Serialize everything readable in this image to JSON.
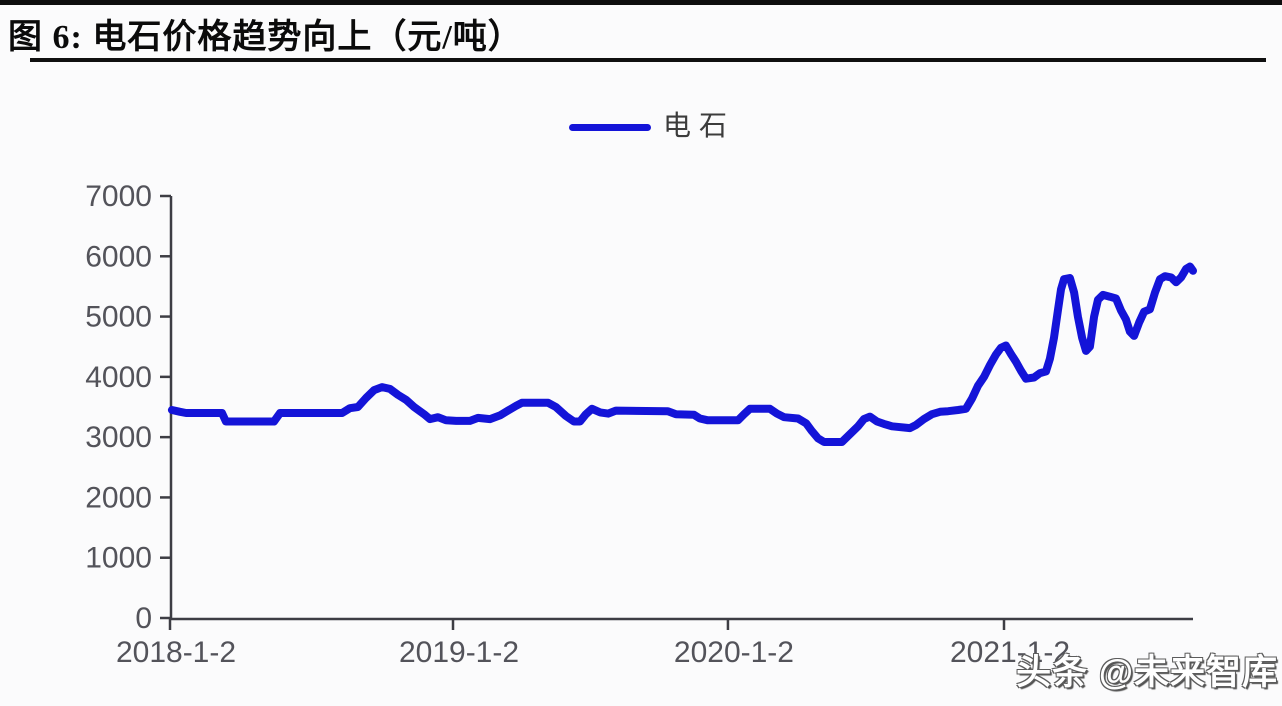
{
  "header": {
    "title": "图 6:  电石价格趋势向上（元/吨）"
  },
  "watermark": {
    "text": "头条 @未来智库"
  },
  "colors": {
    "line_blue": "#1414d8",
    "axis": "#3d3d44",
    "tick_text": "#53535a",
    "title_text": "#0b0b0b",
    "rule_black": "#101010"
  },
  "chart_data": {
    "type": "line",
    "title": "电石价格趋势向上（元/吨）",
    "ylabel": "",
    "xlabel": "",
    "ylim": [
      0,
      7000
    ],
    "grid": false,
    "legend_position": "top-center",
    "legend": [
      {
        "label": "电石",
        "color": "#1414d8"
      }
    ],
    "y_axis": {
      "ticks": [
        0,
        1000,
        2000,
        3000,
        4000,
        5000,
        6000,
        7000
      ]
    },
    "x_axis": {
      "unit": "years since 2018-1-2",
      "ticks": [
        {
          "t": 0.0,
          "label": "2018-1-2"
        },
        {
          "t": 1.018,
          "label": "2019-1-2"
        },
        {
          "t": 2.007,
          "label": "2020-1-2"
        },
        {
          "t": 3.0,
          "label": "2021-1-2"
        }
      ]
    },
    "series": [
      {
        "name": "电石",
        "color": "#1414d8",
        "points": [
          [
            0.007,
            3450
          ],
          [
            0.036,
            3420
          ],
          [
            0.058,
            3400
          ],
          [
            0.187,
            3400
          ],
          [
            0.201,
            3260
          ],
          [
            0.374,
            3260
          ],
          [
            0.396,
            3400
          ],
          [
            0.619,
            3400
          ],
          [
            0.647,
            3480
          ],
          [
            0.676,
            3500
          ],
          [
            0.705,
            3650
          ],
          [
            0.734,
            3780
          ],
          [
            0.763,
            3830
          ],
          [
            0.791,
            3800
          ],
          [
            0.82,
            3700
          ],
          [
            0.849,
            3620
          ],
          [
            0.878,
            3500
          ],
          [
            0.914,
            3380
          ],
          [
            0.935,
            3300
          ],
          [
            0.964,
            3330
          ],
          [
            0.993,
            3280
          ],
          [
            1.029,
            3270
          ],
          [
            1.079,
            3270
          ],
          [
            1.108,
            3320
          ],
          [
            1.151,
            3300
          ],
          [
            1.187,
            3360
          ],
          [
            1.216,
            3440
          ],
          [
            1.245,
            3520
          ],
          [
            1.266,
            3570
          ],
          [
            1.36,
            3570
          ],
          [
            1.388,
            3500
          ],
          [
            1.424,
            3350
          ],
          [
            1.453,
            3260
          ],
          [
            1.475,
            3260
          ],
          [
            1.496,
            3380
          ],
          [
            1.518,
            3470
          ],
          [
            1.547,
            3410
          ],
          [
            1.576,
            3390
          ],
          [
            1.604,
            3440
          ],
          [
            1.791,
            3430
          ],
          [
            1.82,
            3380
          ],
          [
            1.885,
            3370
          ],
          [
            1.906,
            3310
          ],
          [
            1.935,
            3280
          ],
          [
            2.043,
            3280
          ],
          [
            2.065,
            3380
          ],
          [
            2.086,
            3470
          ],
          [
            2.158,
            3470
          ],
          [
            2.183,
            3390
          ],
          [
            2.209,
            3330
          ],
          [
            2.259,
            3310
          ],
          [
            2.288,
            3230
          ],
          [
            2.309,
            3100
          ],
          [
            2.331,
            2980
          ],
          [
            2.353,
            2920
          ],
          [
            2.417,
            2920
          ],
          [
            2.446,
            3050
          ],
          [
            2.475,
            3180
          ],
          [
            2.496,
            3300
          ],
          [
            2.518,
            3340
          ],
          [
            2.543,
            3260
          ],
          [
            2.568,
            3220
          ],
          [
            2.597,
            3180
          ],
          [
            2.662,
            3150
          ],
          [
            2.683,
            3200
          ],
          [
            2.712,
            3300
          ],
          [
            2.741,
            3380
          ],
          [
            2.77,
            3420
          ],
          [
            2.799,
            3430
          ],
          [
            2.835,
            3450
          ],
          [
            2.863,
            3470
          ],
          [
            2.885,
            3640
          ],
          [
            2.906,
            3850
          ],
          [
            2.928,
            4000
          ],
          [
            2.95,
            4200
          ],
          [
            2.971,
            4370
          ],
          [
            2.989,
            4480
          ],
          [
            3.007,
            4520
          ],
          [
            3.025,
            4380
          ],
          [
            3.043,
            4250
          ],
          [
            3.061,
            4100
          ],
          [
            3.079,
            3970
          ],
          [
            3.108,
            3990
          ],
          [
            3.129,
            4060
          ],
          [
            3.151,
            4090
          ],
          [
            3.165,
            4300
          ],
          [
            3.18,
            4650
          ],
          [
            3.194,
            5100
          ],
          [
            3.205,
            5450
          ],
          [
            3.216,
            5620
          ],
          [
            3.237,
            5640
          ],
          [
            3.252,
            5400
          ],
          [
            3.266,
            5000
          ],
          [
            3.281,
            4650
          ],
          [
            3.295,
            4430
          ],
          [
            3.309,
            4500
          ],
          [
            3.324,
            5000
          ],
          [
            3.338,
            5280
          ],
          [
            3.356,
            5360
          ],
          [
            3.381,
            5330
          ],
          [
            3.403,
            5300
          ],
          [
            3.421,
            5100
          ],
          [
            3.439,
            4950
          ],
          [
            3.453,
            4750
          ],
          [
            3.468,
            4680
          ],
          [
            3.486,
            4900
          ],
          [
            3.504,
            5080
          ],
          [
            3.525,
            5120
          ],
          [
            3.543,
            5400
          ],
          [
            3.561,
            5620
          ],
          [
            3.579,
            5670
          ],
          [
            3.601,
            5650
          ],
          [
            3.619,
            5570
          ],
          [
            3.637,
            5650
          ],
          [
            3.655,
            5790
          ],
          [
            3.669,
            5830
          ],
          [
            3.68,
            5760
          ]
        ]
      }
    ]
  }
}
